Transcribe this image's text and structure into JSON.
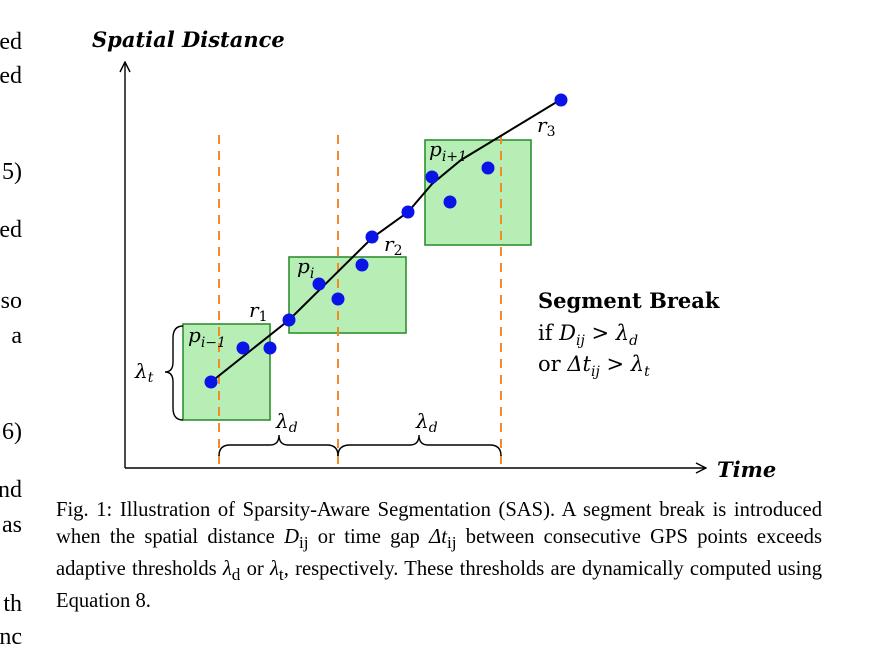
{
  "left_margin_fragments": [
    "ed",
    "ed",
    "5)",
    "ed",
    "so",
    "a",
    "6)",
    "nd",
    "as",
    "th",
    "nc"
  ],
  "figure": {
    "y_axis_label": "Spatial Distance",
    "x_axis_label": "Time",
    "box_labels": [
      "p",
      "p",
      "p"
    ],
    "box_label_subscripts": [
      "i−1",
      "i",
      "i+1"
    ],
    "line_labels": [
      "r",
      "r",
      "r"
    ],
    "line_label_subscripts": [
      "1",
      "2",
      "3"
    ],
    "lambda_t": "λ",
    "lambda_t_sub": "t",
    "lambda_d": "λ",
    "lambda_d_sub": "d",
    "segment_break": {
      "title": "Segment Break",
      "line1_prefix": "if ",
      "line1_var": "D",
      "line1_sub": "ij",
      "line1_op": " > ",
      "line1_lambda": "λ",
      "line1_lambda_sub": "d",
      "line2_prefix": "or ",
      "line2_var": "Δt",
      "line2_sub": "ij",
      "line2_op": " > ",
      "line2_lambda": "λ",
      "line2_lambda_sub": "t"
    },
    "colors": {
      "points": "#0a14e6",
      "box_fill": "#b6eeb6",
      "box_stroke": "#2f8f2f",
      "dashed": "#f08c28"
    }
  },
  "caption": {
    "prefix": "Fig. 1: Illustration of Sparsity-Aware Segmentation (SAS). A segment break is introduced when the spatial distance ",
    "D": "D",
    "D_sub": "ij",
    "mid1": " or time gap ",
    "dt": "Δt",
    "dt_sub": "ij",
    "mid2": " between consecutive GPS points exceeds adaptive thresholds ",
    "ld": "λ",
    "ld_sub": "d",
    "mid3": " or ",
    "lt": "λ",
    "lt_sub": "t",
    "suffix": ", respectively. These thresholds are dynamically computed using Equation 8."
  }
}
